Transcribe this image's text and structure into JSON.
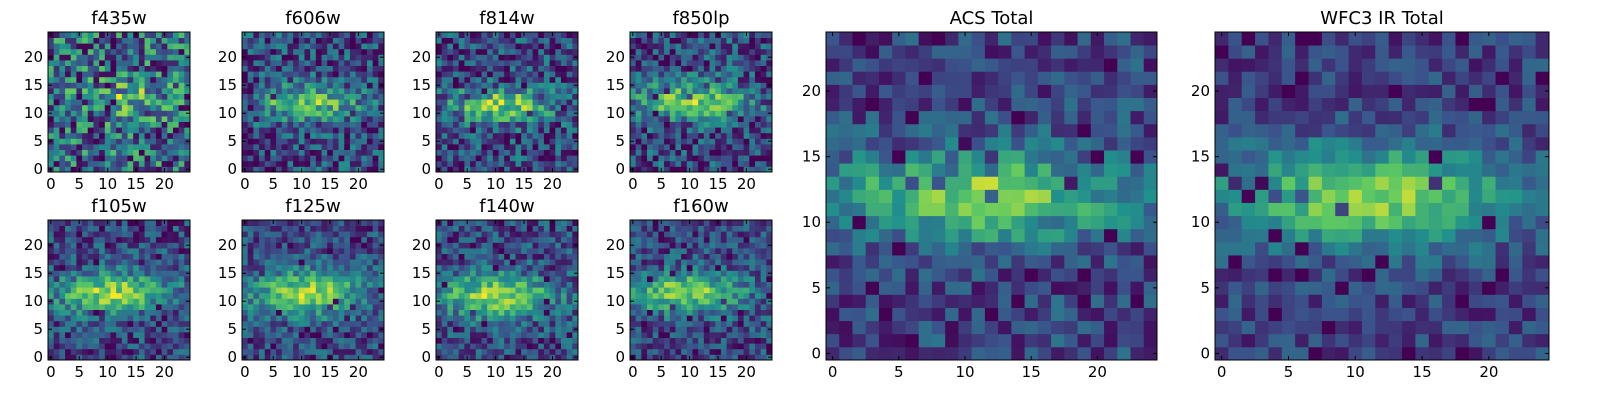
{
  "colormap": [
    "#440154",
    "#3b528b",
    "#21918c",
    "#5ec962",
    "#fde725"
  ],
  "chart_data": [
    {
      "type": "heatmap",
      "title": "f435w",
      "xticks": [
        0,
        5,
        10,
        15,
        20
      ],
      "yticks": [
        0,
        5,
        10,
        15,
        20
      ],
      "xlim": [
        -0.5,
        24.5
      ],
      "ylim": [
        -0.5,
        24.5
      ],
      "grid": false,
      "profile": {
        "noise": 0.42,
        "cx": 13,
        "cy": 12.5,
        "sx": 6,
        "sy": 2.2,
        "amp": 0.35,
        "base": 0.62,
        "seed": 3
      }
    },
    {
      "type": "heatmap",
      "title": "f606w",
      "xticks": [
        0,
        5,
        10,
        15,
        20
      ],
      "yticks": [
        0,
        5,
        10,
        15,
        20
      ],
      "xlim": [
        -0.5,
        24.5
      ],
      "ylim": [
        -0.5,
        24.5
      ],
      "grid": false,
      "profile": {
        "noise": 0.3,
        "cx": 11,
        "cy": 12,
        "sx": 6,
        "sy": 2,
        "amp": 0.55,
        "base": 0.42,
        "seed": 5
      }
    },
    {
      "type": "heatmap",
      "title": "f814w",
      "xticks": [
        0,
        5,
        10,
        15,
        20
      ],
      "yticks": [
        0,
        5,
        10,
        15,
        20
      ],
      "xlim": [
        -0.5,
        24.5
      ],
      "ylim": [
        -0.5,
        24.5
      ],
      "grid": false,
      "profile": {
        "noise": 0.3,
        "cx": 11,
        "cy": 11.5,
        "sx": 6.5,
        "sy": 2.1,
        "amp": 0.55,
        "base": 0.42,
        "seed": 7
      }
    },
    {
      "type": "heatmap",
      "title": "f850lp",
      "xticks": [
        0,
        5,
        10,
        15,
        20
      ],
      "yticks": [
        0,
        5,
        10,
        15,
        20
      ],
      "xlim": [
        -0.5,
        24.5
      ],
      "ylim": [
        -0.5,
        24.5
      ],
      "grid": false,
      "profile": {
        "noise": 0.3,
        "cx": 10,
        "cy": 12,
        "sx": 7,
        "sy": 2.3,
        "amp": 0.55,
        "base": 0.42,
        "seed": 9
      }
    },
    {
      "type": "heatmap",
      "title": "f105w",
      "xticks": [
        0,
        5,
        10,
        15,
        20
      ],
      "yticks": [
        0,
        5,
        10,
        15,
        20
      ],
      "xlim": [
        -0.5,
        24.5
      ],
      "ylim": [
        -0.5,
        24.5
      ],
      "grid": false,
      "profile": {
        "noise": 0.25,
        "cx": 11,
        "cy": 11.5,
        "sx": 7,
        "sy": 2.6,
        "amp": 0.6,
        "base": 0.4,
        "seed": 11
      }
    },
    {
      "type": "heatmap",
      "title": "f125w",
      "xticks": [
        0,
        5,
        10,
        15,
        20
      ],
      "yticks": [
        0,
        5,
        10,
        15,
        20
      ],
      "xlim": [
        -0.5,
        24.5
      ],
      "ylim": [
        -0.5,
        24.5
      ],
      "grid": false,
      "profile": {
        "noise": 0.22,
        "cx": 11,
        "cy": 11.5,
        "sx": 7,
        "sy": 2.8,
        "amp": 0.6,
        "base": 0.42,
        "seed": 13
      }
    },
    {
      "type": "heatmap",
      "title": "f140w",
      "xticks": [
        0,
        5,
        10,
        15,
        20
      ],
      "yticks": [
        0,
        5,
        10,
        15,
        20
      ],
      "xlim": [
        -0.5,
        24.5
      ],
      "ylim": [
        -0.5,
        24.5
      ],
      "grid": false,
      "profile": {
        "noise": 0.24,
        "cx": 10,
        "cy": 11,
        "sx": 7.5,
        "sy": 2.7,
        "amp": 0.6,
        "base": 0.42,
        "seed": 17
      }
    },
    {
      "type": "heatmap",
      "title": "f160w",
      "xticks": [
        0,
        5,
        10,
        15,
        20
      ],
      "yticks": [
        0,
        5,
        10,
        15,
        20
      ],
      "xlim": [
        -0.5,
        24.5
      ],
      "ylim": [
        -0.5,
        24.5
      ],
      "grid": false,
      "profile": {
        "noise": 0.24,
        "cx": 9,
        "cy": 11.5,
        "sx": 7.5,
        "sy": 2.5,
        "amp": 0.6,
        "base": 0.4,
        "seed": 19
      }
    },
    {
      "type": "heatmap",
      "title": "ACS Total",
      "xticks": [
        0,
        5,
        10,
        15,
        20
      ],
      "yticks": [
        0,
        5,
        10,
        15,
        20
      ],
      "xlim": [
        -0.5,
        24.5
      ],
      "ylim": [
        -0.5,
        24.5
      ],
      "grid": false,
      "profile": {
        "noise": 0.2,
        "cx": 11,
        "cy": 12,
        "sx": 8,
        "sy": 2.3,
        "amp": 0.6,
        "base": 0.38,
        "seed": 23
      }
    },
    {
      "type": "heatmap",
      "title": "WFC3 IR Total",
      "xticks": [
        0,
        5,
        10,
        15,
        20
      ],
      "yticks": [
        0,
        5,
        10,
        15,
        20
      ],
      "xlim": [
        -0.5,
        24.5
      ],
      "ylim": [
        -0.5,
        24.5
      ],
      "grid": false,
      "profile": {
        "noise": 0.16,
        "cx": 11,
        "cy": 12,
        "sx": 8,
        "sy": 2.6,
        "amp": 0.62,
        "base": 0.36,
        "seed": 29
      }
    }
  ]
}
